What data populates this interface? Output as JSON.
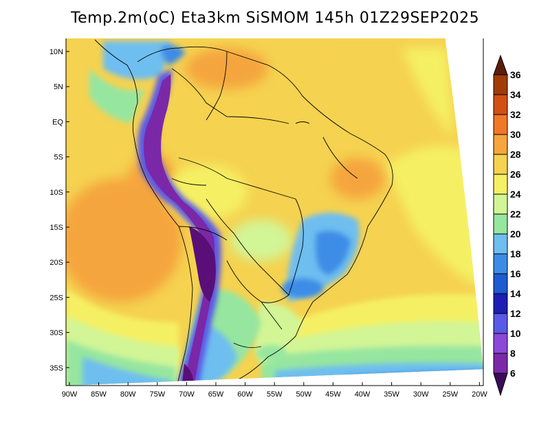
{
  "title": "Temp.2m(oC) Eta3km SiSMOM 145h 01Z29SEP2025",
  "lat_ticks": [
    "10N",
    "5N",
    "EQ",
    "5S",
    "10S",
    "15S",
    "20S",
    "25S",
    "30S",
    "35S"
  ],
  "lon_ticks": [
    "90W",
    "85W",
    "80W",
    "75W",
    "70W",
    "65W",
    "60W",
    "55W",
    "50W",
    "45W",
    "40W",
    "35W",
    "30W",
    "25W",
    "20W"
  ],
  "colorbar": {
    "labels": [
      "6",
      "8",
      "10",
      "12",
      "14",
      "16",
      "18",
      "20",
      "22",
      "24",
      "26",
      "28",
      "30",
      "32",
      "34",
      "36"
    ],
    "colors": [
      "#5a0f78",
      "#7b28a8",
      "#8e48d8",
      "#5a5ae6",
      "#1e1eb4",
      "#1e5ad2",
      "#3c8ce6",
      "#6ebef0",
      "#96e6a0",
      "#d2f596",
      "#f5f064",
      "#f5d250",
      "#f5a53c",
      "#f07828",
      "#d25014",
      "#a03c0a",
      "#6e280a"
    ],
    "lower_arrow_color": "#3c0a5a",
    "upper_arrow_color": "#5a1e0a"
  }
}
